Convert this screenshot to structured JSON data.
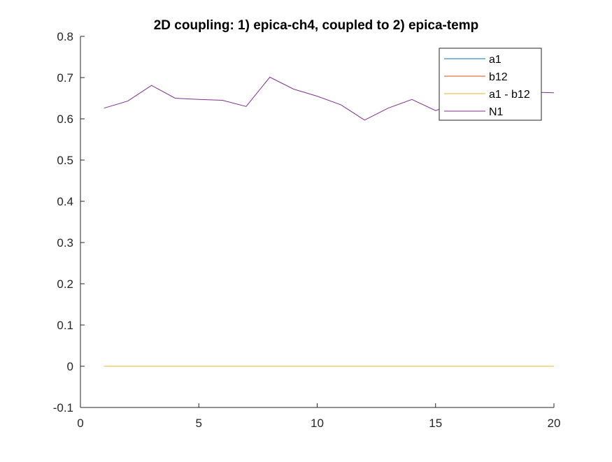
{
  "chart_data": {
    "type": "line",
    "title": "2D coupling: 1) epica-ch4, coupled to 2) epica-temp",
    "xlabel": "",
    "ylabel": "",
    "xlim": [
      0,
      20
    ],
    "ylim": [
      -0.1,
      0.8
    ],
    "x_ticks": [
      0,
      5,
      10,
      15,
      20
    ],
    "y_ticks": [
      -0.1,
      0,
      0.1,
      0.2,
      0.3,
      0.4,
      0.5,
      0.6,
      0.7,
      0.8
    ],
    "x_tick_labels": [
      "0",
      "5",
      "10",
      "15",
      "20"
    ],
    "y_tick_labels": [
      "-0.1",
      "0",
      "0.1",
      "0.2",
      "0.3",
      "0.4",
      "0.5",
      "0.6",
      "0.7",
      "0.8"
    ],
    "legend_position": "top-right",
    "x": [
      1,
      2,
      3,
      4,
      5,
      6,
      7,
      8,
      9,
      10,
      11,
      12,
      13,
      14,
      15,
      16,
      17,
      18,
      19,
      20
    ],
    "series": [
      {
        "name": "a1",
        "color": "#0072BD",
        "values": [
          0,
          0,
          0,
          0,
          0,
          0,
          0,
          0,
          0,
          0,
          0,
          0,
          0,
          0,
          0,
          0,
          0,
          0,
          0,
          0
        ]
      },
      {
        "name": "b12",
        "color": "#D95319",
        "values": [
          0,
          0,
          0,
          0,
          0,
          0,
          0,
          0,
          0,
          0,
          0,
          0,
          0,
          0,
          0,
          0,
          0,
          0,
          0,
          0
        ]
      },
      {
        "name": "a1 - b12",
        "color": "#EDB120",
        "values": [
          0,
          0,
          0,
          0,
          0,
          0,
          0,
          0,
          0,
          0,
          0,
          0,
          0,
          0,
          0,
          0,
          0,
          0,
          0,
          0
        ]
      },
      {
        "name": "N1",
        "color": "#7E2F8E",
        "values": [
          0.626,
          0.643,
          0.681,
          0.65,
          0.647,
          0.645,
          0.63,
          0.701,
          0.672,
          0.655,
          0.634,
          0.597,
          0.626,
          0.647,
          0.62,
          0.64,
          0.65,
          0.66,
          0.665,
          0.663
        ]
      }
    ]
  }
}
